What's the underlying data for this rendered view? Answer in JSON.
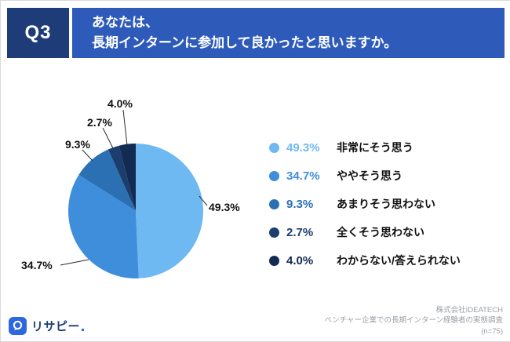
{
  "header": {
    "q_label": "Q3",
    "title_line1": "あなたは、",
    "title_line2": "長期インターンに参加して良かったと思いますか。"
  },
  "colors": {
    "q_box": "#1E3C78",
    "header_bar": "#2E5BBA",
    "logo_blue": "#2D68E0"
  },
  "chart_data": {
    "type": "pie",
    "title": "Q3 あなたは、長期インターンに参加して良かったと思いますか。",
    "categories": [
      "非常にそう思う",
      "ややそう思う",
      "あまりそう思わない",
      "全くそう思わない",
      "わからない/答えられない"
    ],
    "values": [
      49.3,
      34.7,
      9.3,
      2.7,
      4.0
    ],
    "value_labels": [
      "49.3%",
      "34.7%",
      "9.3%",
      "2.7%",
      "4.0%"
    ],
    "colors": [
      "#6FB9F2",
      "#3F8EDC",
      "#2C70B4",
      "#1C3E6E",
      "#122B52"
    ],
    "start_angle_deg": 0,
    "direction": "clockwise",
    "legend_position": "right",
    "total": 100.0
  },
  "footer": {
    "company": "株式会社IDEATECH",
    "survey": "ベンチャー企業での長期インターン経験者の実態調査",
    "sample": "(n=75)"
  },
  "logo": {
    "text": "リサピー"
  }
}
